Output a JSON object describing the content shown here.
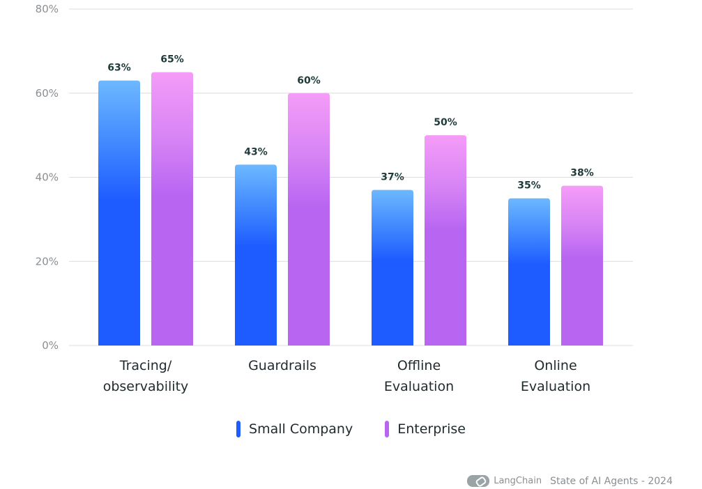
{
  "chart_data": {
    "type": "bar",
    "categories": [
      [
        "Tracing/",
        "observability"
      ],
      [
        "Guardrails"
      ],
      [
        "Offline",
        "Evaluation"
      ],
      [
        "Online",
        "Evaluation"
      ]
    ],
    "series": [
      {
        "name": "Small Company",
        "values": [
          63,
          43,
          37,
          35
        ],
        "labels": [
          "63%",
          "43%",
          "37%",
          "35%"
        ]
      },
      {
        "name": "Enterprise",
        "values": [
          65,
          60,
          50,
          38
        ],
        "labels": [
          "65%",
          "60%",
          "50%",
          "38%"
        ]
      }
    ],
    "ylim": [
      0,
      80
    ],
    "yticks": [
      "0%",
      "20%",
      "40%",
      "60%",
      "80%"
    ],
    "ytick_values": [
      0,
      20,
      40,
      60,
      80
    ],
    "grid": true,
    "legend_position": "bottom-center"
  },
  "colors": {
    "small_company_top": "#6db8ff",
    "small_company_bottom": "#1f5cff",
    "enterprise_top": "#f59cf8",
    "enterprise_bottom": "#b866f2"
  },
  "legend": {
    "items": [
      {
        "label": "Small Company",
        "color": "#1f5cff"
      },
      {
        "label": "Enterprise",
        "color": "#b866f2"
      }
    ]
  },
  "footer": {
    "brand": "LangChain",
    "text": "State of AI Agents - 2024",
    "logo_icon": "langchain-link-icon"
  }
}
